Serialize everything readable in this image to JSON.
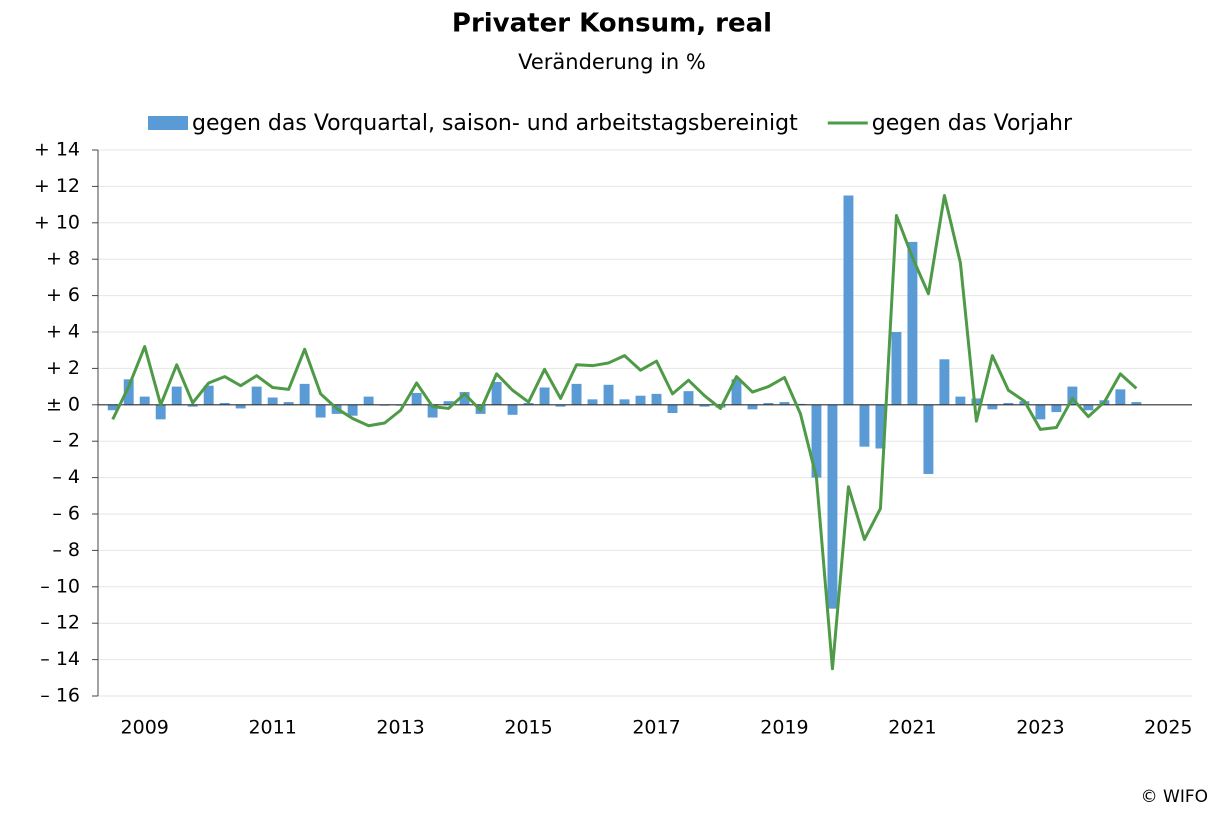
{
  "chart_data": {
    "type": "bar_line",
    "title": "Privater Konsum, real",
    "subtitle": "Veränderung in %",
    "source": "© WIFO",
    "x": [
      2008.5,
      2008.75,
      2009,
      2009.25,
      2009.5,
      2009.75,
      2010,
      2010.25,
      2010.5,
      2010.75,
      2011,
      2011.25,
      2011.5,
      2011.75,
      2012,
      2012.25,
      2012.5,
      2012.75,
      2013,
      2013.25,
      2013.5,
      2013.75,
      2014,
      2014.25,
      2014.5,
      2014.75,
      2015,
      2015.25,
      2015.5,
      2015.75,
      2016,
      2016.25,
      2016.5,
      2016.75,
      2017,
      2017.25,
      2017.5,
      2017.75,
      2018,
      2018.25,
      2018.5,
      2018.75,
      2019,
      2019.25,
      2019.5,
      2019.75,
      2020,
      2020.25,
      2020.5,
      2020.75,
      2021,
      2021.25,
      2021.5,
      2021.75,
      2022,
      2022.25,
      2022.5,
      2022.75,
      2023,
      2023.25,
      2023.5,
      2023.75,
      2024,
      2024.25,
      2024.5
    ],
    "series": [
      {
        "name": "gegen das Vorquartal, saison- und arbeitstagsbereinigt",
        "kind": "bar",
        "color": "#5b9bd5",
        "values": [
          -0.3,
          1.4,
          0.45,
          -0.8,
          1.0,
          -0.1,
          1.05,
          0.1,
          -0.2,
          1.0,
          0.4,
          0.15,
          1.15,
          -0.7,
          -0.5,
          -0.6,
          0.45,
          -0.05,
          -0.05,
          0.65,
          -0.7,
          0.2,
          0.7,
          -0.5,
          1.25,
          -0.55,
          0.1,
          0.95,
          -0.1,
          1.15,
          0.3,
          1.1,
          0.3,
          0.5,
          0.6,
          -0.45,
          0.75,
          -0.1,
          -0.15,
          1.4,
          -0.25,
          0.1,
          0.15,
          0.05,
          -4.0,
          -11.2,
          11.5,
          -2.3,
          -2.4,
          4.0,
          8.95,
          -3.8,
          2.5,
          0.45,
          0.35,
          -0.25,
          0.1,
          0.2,
          -0.8,
          -0.4,
          1.0,
          -0.3,
          0.25,
          0.85,
          0.15
        ]
      },
      {
        "name": "gegen das Vorjahr",
        "kind": "line",
        "color": "#4e9a47",
        "values": [
          -0.8,
          1.0,
          3.2,
          0.0,
          2.2,
          0.1,
          1.2,
          1.55,
          1.05,
          1.6,
          0.95,
          0.85,
          3.05,
          0.6,
          -0.2,
          -0.75,
          -1.15,
          -1.0,
          -0.3,
          1.2,
          -0.1,
          -0.2,
          0.6,
          -0.3,
          1.7,
          0.8,
          0.15,
          1.95,
          0.35,
          2.2,
          2.15,
          2.3,
          2.7,
          1.9,
          2.4,
          0.6,
          1.35,
          0.5,
          -0.2,
          1.55,
          0.7,
          1.0,
          1.5,
          -0.5,
          -4.0,
          -14.5,
          -4.5,
          -7.4,
          -5.7,
          10.4,
          8.1,
          6.1,
          11.5,
          7.8,
          -0.9,
          2.7,
          0.8,
          0.2,
          -1.35,
          -1.25,
          0.35,
          -0.65,
          0.15,
          1.7,
          0.9
        ]
      }
    ],
    "xlim": [
      2008.27,
      2025.37
    ],
    "xticks": [
      2009,
      2011,
      2013,
      2015,
      2017,
      2019,
      2021,
      2023,
      2025
    ],
    "ylim": [
      -16,
      14
    ],
    "yticks": [
      {
        "value": 14,
        "label": "+ 14"
      },
      {
        "value": 12,
        "label": "+ 12"
      },
      {
        "value": 10,
        "label": "+ 10"
      },
      {
        "value": 8,
        "label": "+ 8"
      },
      {
        "value": 6,
        "label": "+ 6"
      },
      {
        "value": 4,
        "label": "+ 4"
      },
      {
        "value": 2,
        "label": "+ 2"
      },
      {
        "value": 0,
        "label": "± 0"
      },
      {
        "value": -2,
        "label": "– 2"
      },
      {
        "value": -4,
        "label": "– 4"
      },
      {
        "value": -6,
        "label": "– 6"
      },
      {
        "value": -8,
        "label": "– 8"
      },
      {
        "value": -10,
        "label": "– 10"
      },
      {
        "value": -12,
        "label": "– 12"
      },
      {
        "value": -14,
        "label": "– 14"
      },
      {
        "value": -16,
        "label": "– 16"
      }
    ],
    "grid": true,
    "legend": "top"
  }
}
